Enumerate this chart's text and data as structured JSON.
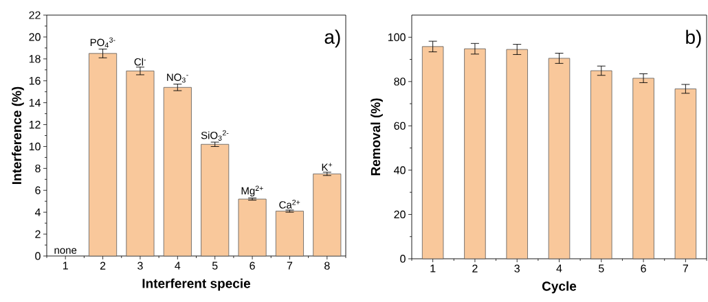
{
  "chart_data": [
    {
      "type": "bar",
      "xlabel": "Interferent specie",
      "ylabel": "Interference (%)",
      "categories": [
        "1",
        "2",
        "3",
        "4",
        "5",
        "6",
        "7",
        "8"
      ],
      "values": [
        null,
        18.5,
        16.9,
        15.4,
        10.2,
        5.2,
        4.1,
        7.5
      ],
      "errors": [
        null,
        0.4,
        0.35,
        0.3,
        0.2,
        0.1,
        0.1,
        0.15
      ],
      "color": "#f9c89b",
      "ylim": [
        0,
        22
      ],
      "yticks": [
        0,
        2,
        4,
        6,
        8,
        10,
        12,
        14,
        16,
        18,
        20,
        22
      ],
      "annotations": [
        "a)",
        "none",
        {
          "text": "PO$_{4}$$^{3-}$",
          "x": "2",
          "y": 18.9
        },
        {
          "text": "Cl$^{-}$",
          "x": "3",
          "y": 17.25
        },
        {
          "text": "NO$_{3}$$^{-}$",
          "x": "4",
          "y": 15.7
        },
        {
          "text": "SiO$_{3}$$^{2-}$",
          "x": "5",
          "y": 10.4
        },
        {
          "text": "Mg$^{2+}$",
          "x": "6",
          "y": 5.3
        },
        {
          "text": "Ca$^{2+}$",
          "x": "7",
          "y": 4.2
        },
        {
          "text": "K$^{+}$",
          "x": "8",
          "y": 7.65
        }
      ]
    },
    {
      "type": "bar",
      "xlabel": "Cycle",
      "ylabel": "Removal (%)",
      "categories": [
        "1",
        "2",
        "3",
        "4",
        "5",
        "6",
        "7"
      ],
      "values": [
        95.8,
        94.8,
        94.5,
        90.5,
        84.9,
        81.5,
        76.7
      ],
      "errors": [
        2.4,
        2.4,
        2.3,
        2.3,
        2.1,
        2.0,
        2.0
      ],
      "color": "#f9c89b",
      "ylim": [
        0,
        110
      ],
      "yticks": [
        0,
        20,
        40,
        60,
        80,
        100
      ],
      "annotations": [
        "b)"
      ]
    }
  ]
}
